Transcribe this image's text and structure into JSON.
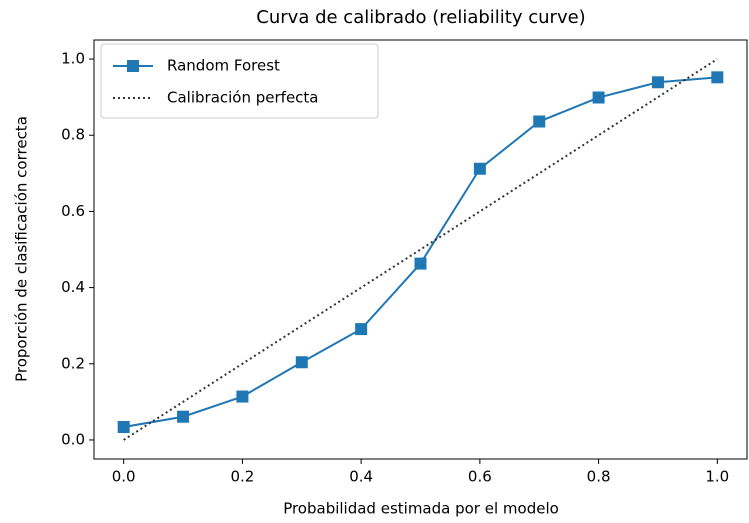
{
  "chart_data": {
    "type": "line",
    "title": "Curva de calibrado (reliability curve)",
    "xlabel": "Probabilidad estimada por el modelo",
    "ylabel": "Proporción de clasificación correcta",
    "xlim": [
      -0.05,
      1.05
    ],
    "ylim": [
      -0.05,
      1.05
    ],
    "xticks": [
      {
        "value": 0,
        "label": "0.0"
      },
      0.2,
      0.4,
      0.6,
      0.8,
      {
        "value": 1,
        "label": "1.0"
      }
    ],
    "yticks": [
      {
        "value": 0,
        "label": "0.0"
      },
      0.2,
      0.4,
      0.6,
      0.8,
      {
        "value": 1,
        "label": "1.0"
      }
    ],
    "legend": "upper left",
    "grid": false,
    "series": [
      {
        "name": "Random Forest",
        "color": "#1f77b4",
        "linestyle": "solid",
        "marker": "square",
        "x": [
          0,
          0.1,
          0.2,
          0.3,
          0.4,
          0.5,
          0.6,
          0.7,
          0.8,
          0.9,
          1
        ],
        "values": [
          0.034,
          0.061,
          0.114,
          0.204,
          0.291,
          0.463,
          0.712,
          0.836,
          0.899,
          0.939,
          0.952
        ]
      },
      {
        "name": "Calibración perfecta",
        "color": "#333333",
        "linestyle": "dotted",
        "x": [
          0,
          1
        ],
        "values": [
          0,
          1
        ]
      }
    ]
  }
}
